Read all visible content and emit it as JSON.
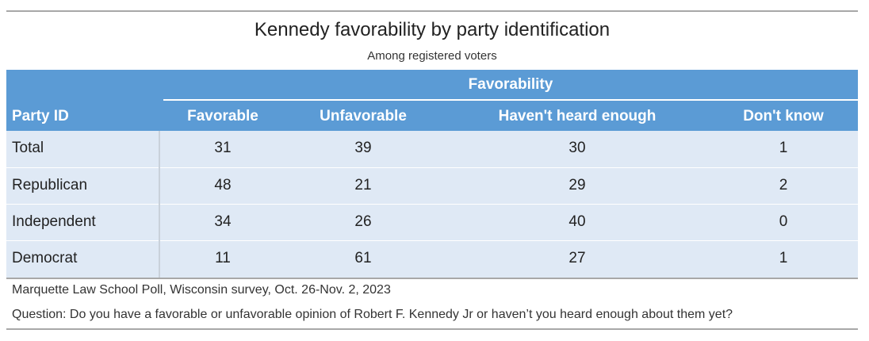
{
  "chart_data": {
    "type": "table",
    "title": "Kennedy favorability by party identification",
    "subtitle": "Among registered voters",
    "spanner": "Favorability",
    "columns": [
      "Party ID",
      "Favorable",
      "Unfavorable",
      "Haven't heard enough",
      "Don't know"
    ],
    "rows": [
      {
        "label": "Total",
        "values": [
          "31",
          "39",
          "30",
          "1"
        ]
      },
      {
        "label": "Republican",
        "values": [
          "48",
          "21",
          "29",
          "2"
        ]
      },
      {
        "label": "Independent",
        "values": [
          "34",
          "26",
          "40",
          "0"
        ]
      },
      {
        "label": "Democrat",
        "values": [
          "11",
          "61",
          "27",
          "1"
        ]
      }
    ],
    "source": "Marquette Law School Poll, Wisconsin survey, Oct. 26-Nov. 2, 2023",
    "note": "Question: Do you have a favorable or unfavorable opinion of Robert F. Kennedy Jr or haven’t you heard enough about them yet?"
  },
  "colors": {
    "header": "#5b9bd5",
    "body": "#dfe9f5",
    "rule": "#a8a8a8"
  }
}
